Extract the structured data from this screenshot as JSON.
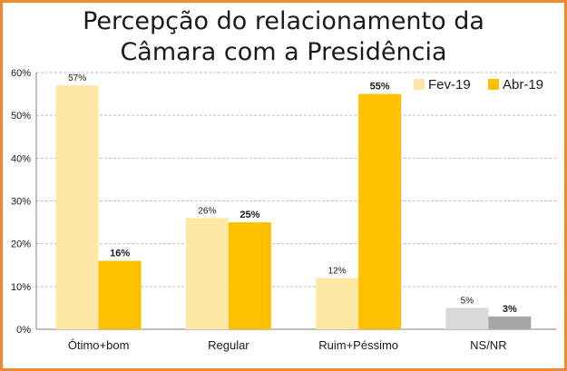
{
  "chart_data": {
    "type": "bar",
    "title_lines": [
      "Percepção do relacionamento da",
      "Câmara com a Presidência"
    ],
    "categories": [
      "Ótimo+bom",
      "Regular",
      "Ruim+Péssimo",
      "NS/NR"
    ],
    "series": [
      {
        "name": "Fev-19",
        "values": [
          57,
          26,
          12,
          5
        ],
        "labels": [
          "57%",
          "26%",
          "12%",
          "5%"
        ],
        "color": "#FFE7A5",
        "bold": false
      },
      {
        "name": "Abr-19",
        "values": [
          16,
          25,
          55,
          3
        ],
        "labels": [
          "16%",
          "25%",
          "55%",
          "3%"
        ],
        "color": "#FFC000",
        "bold": true
      }
    ],
    "nsnr_colors": [
      "#D9D9D9",
      "#A6A6A6"
    ],
    "yticks": [
      "0%",
      "10%",
      "20%",
      "30%",
      "40%",
      "50%",
      "60%"
    ],
    "ylim": [
      0,
      60
    ],
    "grid": true,
    "legend_position": "top-right",
    "colors": {
      "frame": "#F0892F",
      "grid": "#BFBFBF",
      "axis": "#808080",
      "text": "#1a1a1a"
    }
  }
}
